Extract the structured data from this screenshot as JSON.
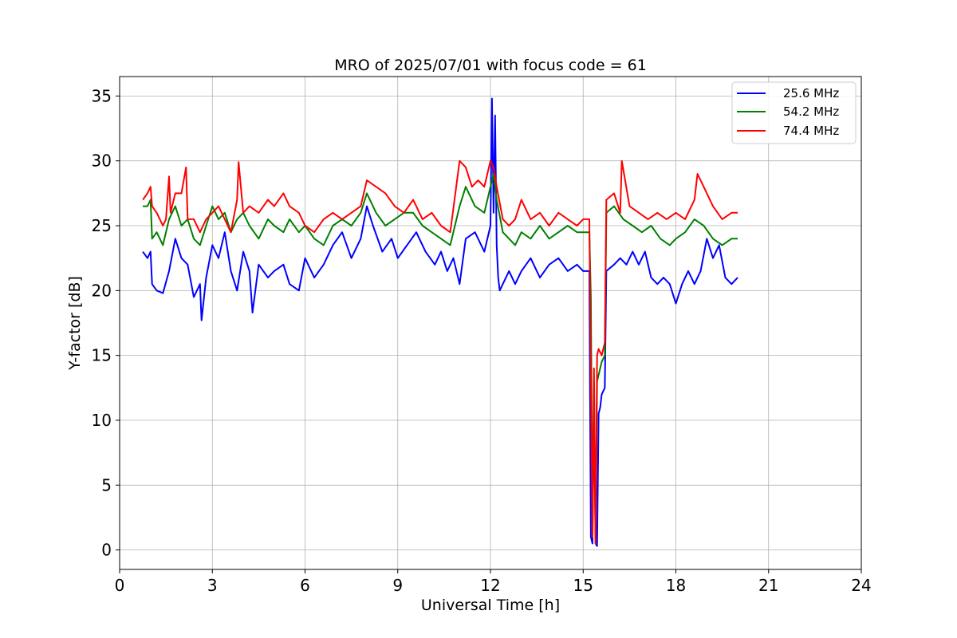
{
  "chart_data": {
    "type": "line",
    "title": "MRO of 2025/07/01 with focus code = 61",
    "xlabel": "Universal Time [h]",
    "ylabel": "Y-factor [dB]",
    "xlim": [
      0,
      24
    ],
    "ylim": [
      -1.5,
      36.5
    ],
    "xticks": [
      0,
      3,
      6,
      9,
      12,
      15,
      18,
      21,
      24
    ],
    "yticks": [
      0,
      5,
      10,
      15,
      20,
      25,
      30,
      35
    ],
    "grid": true,
    "legend_position": "top-right",
    "series": [
      {
        "name": "25.6 MHz",
        "color": "#0000ff",
        "x": [
          0.75,
          0.9,
          1.0,
          1.05,
          1.2,
          1.4,
          1.6,
          1.8,
          2.0,
          2.2,
          2.4,
          2.6,
          2.65,
          2.8,
          3.0,
          3.2,
          3.4,
          3.6,
          3.8,
          4.0,
          4.2,
          4.3,
          4.5,
          4.8,
          5.0,
          5.3,
          5.5,
          5.8,
          6.0,
          6.3,
          6.6,
          6.9,
          7.2,
          7.5,
          7.8,
          8.0,
          8.2,
          8.5,
          8.8,
          9.0,
          9.3,
          9.6,
          9.9,
          10.2,
          10.4,
          10.6,
          10.8,
          11.0,
          11.2,
          11.5,
          11.8,
          12.0,
          12.05,
          12.1,
          12.15,
          12.2,
          12.25,
          12.3,
          12.6,
          12.8,
          13.0,
          13.3,
          13.6,
          13.9,
          14.2,
          14.5,
          14.8,
          15.0,
          15.2,
          15.25,
          15.3,
          15.35,
          15.4,
          15.45,
          15.5,
          15.55,
          15.6,
          15.7,
          15.75,
          16.0,
          16.2,
          16.4,
          16.6,
          16.8,
          17.0,
          17.2,
          17.4,
          17.6,
          17.8,
          18.0,
          18.2,
          18.4,
          18.6,
          18.8,
          19.0,
          19.2,
          19.4,
          19.6,
          19.8,
          20.0
        ],
        "values": [
          23.0,
          22.5,
          23.0,
          20.5,
          20.0,
          19.8,
          21.5,
          24.0,
          22.5,
          22.0,
          19.5,
          20.5,
          17.7,
          21.0,
          23.5,
          22.5,
          24.5,
          21.5,
          20.0,
          23.0,
          21.5,
          18.3,
          22.0,
          21.0,
          21.5,
          22.0,
          20.5,
          20.0,
          22.5,
          21.0,
          22.0,
          23.5,
          24.5,
          22.5,
          24.0,
          26.5,
          25.0,
          23.0,
          24.0,
          22.5,
          23.5,
          24.5,
          23.0,
          22.0,
          23.0,
          21.5,
          22.5,
          20.5,
          24.0,
          24.5,
          23.0,
          25.0,
          34.8,
          26.0,
          33.5,
          23.5,
          21.0,
          20.0,
          21.5,
          20.5,
          21.5,
          22.5,
          21.0,
          22.0,
          22.5,
          21.5,
          22.0,
          21.5,
          21.5,
          1.0,
          0.5,
          11.0,
          0.5,
          0.3,
          10.5,
          11.0,
          12.0,
          12.5,
          21.5,
          22.0,
          22.5,
          22.0,
          23.0,
          22.0,
          23.0,
          21.0,
          20.5,
          21.0,
          20.5,
          19.0,
          20.5,
          21.5,
          20.5,
          21.5,
          24.0,
          22.5,
          23.5,
          21.0,
          20.5,
          21.0
        ]
      },
      {
        "name": "54.2 MHz",
        "color": "#008000",
        "x": [
          0.75,
          0.9,
          1.0,
          1.05,
          1.2,
          1.4,
          1.6,
          1.8,
          2.0,
          2.2,
          2.4,
          2.6,
          2.8,
          3.0,
          3.2,
          3.4,
          3.6,
          3.8,
          4.0,
          4.2,
          4.5,
          4.8,
          5.0,
          5.3,
          5.5,
          5.8,
          6.0,
          6.3,
          6.6,
          6.9,
          7.2,
          7.5,
          7.8,
          8.0,
          8.3,
          8.6,
          8.9,
          9.2,
          9.5,
          9.8,
          10.1,
          10.4,
          10.7,
          11.0,
          11.2,
          11.5,
          11.8,
          12.0,
          12.1,
          12.2,
          12.4,
          12.6,
          12.8,
          13.0,
          13.3,
          13.6,
          13.9,
          14.2,
          14.5,
          14.8,
          15.0,
          15.2,
          15.25,
          15.3,
          15.35,
          15.4,
          15.45,
          15.5,
          15.6,
          15.7,
          15.75,
          16.0,
          16.3,
          16.6,
          16.9,
          17.2,
          17.5,
          17.8,
          18.0,
          18.3,
          18.6,
          18.9,
          19.2,
          19.5,
          19.8,
          20.0
        ],
        "values": [
          26.5,
          26.5,
          27.0,
          24.0,
          24.5,
          23.5,
          25.5,
          26.5,
          25.0,
          25.5,
          24.0,
          23.5,
          25.0,
          26.5,
          25.5,
          26.0,
          24.5,
          25.5,
          26.0,
          25.0,
          24.0,
          25.5,
          25.0,
          24.5,
          25.5,
          24.5,
          25.0,
          24.0,
          23.5,
          25.0,
          25.5,
          25.0,
          26.0,
          27.5,
          26.0,
          25.0,
          25.5,
          26.0,
          26.0,
          25.0,
          24.5,
          24.0,
          23.5,
          26.5,
          28.0,
          26.5,
          26.0,
          28.0,
          29.0,
          27.0,
          24.5,
          24.0,
          23.5,
          24.5,
          24.0,
          25.0,
          24.0,
          24.5,
          25.0,
          24.5,
          24.5,
          24.5,
          19.5,
          1.0,
          12.5,
          0.5,
          13.0,
          13.5,
          14.5,
          15.0,
          26.0,
          26.5,
          25.5,
          25.0,
          24.5,
          25.0,
          24.0,
          23.5,
          24.0,
          24.5,
          25.5,
          25.0,
          24.0,
          23.5,
          24.0,
          24.0
        ]
      },
      {
        "name": "74.4 MHz",
        "color": "#ff0000",
        "x": [
          0.75,
          0.9,
          1.0,
          1.05,
          1.2,
          1.4,
          1.5,
          1.6,
          1.65,
          1.8,
          2.0,
          2.15,
          2.2,
          2.4,
          2.6,
          2.8,
          3.0,
          3.2,
          3.4,
          3.6,
          3.8,
          3.85,
          4.0,
          4.2,
          4.5,
          4.8,
          5.0,
          5.3,
          5.5,
          5.8,
          6.0,
          6.3,
          6.6,
          6.9,
          7.2,
          7.5,
          7.8,
          8.0,
          8.3,
          8.6,
          8.9,
          9.2,
          9.5,
          9.8,
          10.1,
          10.4,
          10.7,
          11.0,
          11.2,
          11.4,
          11.6,
          11.8,
          12.0,
          12.1,
          12.2,
          12.4,
          12.6,
          12.8,
          13.0,
          13.3,
          13.6,
          13.9,
          14.2,
          14.5,
          14.8,
          15.0,
          15.2,
          15.25,
          15.3,
          15.35,
          15.4,
          15.45,
          15.5,
          15.6,
          15.7,
          15.75,
          16.0,
          16.2,
          16.25,
          16.5,
          16.8,
          17.1,
          17.4,
          17.7,
          18.0,
          18.3,
          18.6,
          18.7,
          18.9,
          19.2,
          19.5,
          19.8,
          20.0
        ],
        "values": [
          27.0,
          27.5,
          28.0,
          26.5,
          26.0,
          25.0,
          25.5,
          28.8,
          26.0,
          27.5,
          27.5,
          29.5,
          25.5,
          25.5,
          24.5,
          25.5,
          26.0,
          26.5,
          25.5,
          24.5,
          27.0,
          29.9,
          26.0,
          26.5,
          26.0,
          27.0,
          26.5,
          27.5,
          26.5,
          26.0,
          25.0,
          24.5,
          25.5,
          26.0,
          25.5,
          26.0,
          26.5,
          28.5,
          28.0,
          27.5,
          26.5,
          26.0,
          27.0,
          25.5,
          26.0,
          25.0,
          24.5,
          30.0,
          29.5,
          28.0,
          28.5,
          28.0,
          30.0,
          29.5,
          28.0,
          25.5,
          25.0,
          25.5,
          27.0,
          25.5,
          26.0,
          25.0,
          26.0,
          25.5,
          25.0,
          25.5,
          25.5,
          13.0,
          1.0,
          14.0,
          0.5,
          15.0,
          15.5,
          15.0,
          16.0,
          27.0,
          27.5,
          26.0,
          30.0,
          26.5,
          26.0,
          25.5,
          26.0,
          25.5,
          26.0,
          25.5,
          27.0,
          29.0,
          28.0,
          26.5,
          25.5,
          26.0,
          26.0
        ]
      }
    ]
  }
}
